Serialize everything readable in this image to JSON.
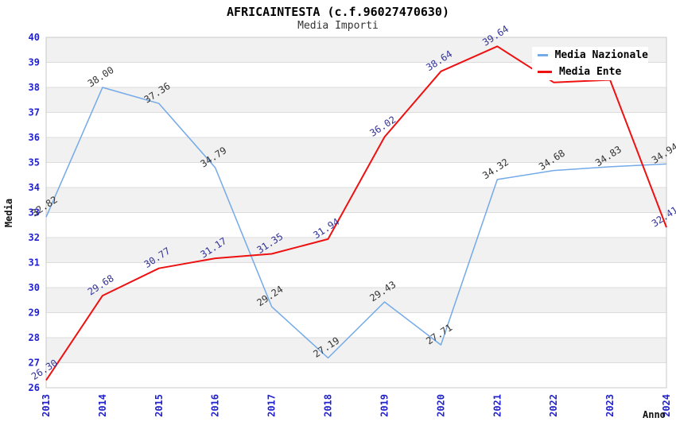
{
  "header": {
    "title": "AFRICAINTESTA (c.f.96027470630)",
    "subtitle": "Media Importi"
  },
  "legend": {
    "items": [
      {
        "label": "Media Nazionale",
        "color": "#74aae8"
      },
      {
        "label": "Media Ente",
        "color": "#ee1111"
      }
    ]
  },
  "chart_data": {
    "type": "line",
    "title": "AFRICAINTESTA (c.f.96027470630)",
    "subtitle": "Media Importi",
    "xlabel": "Anno",
    "ylabel": "Media",
    "x": [
      "2013",
      "2014",
      "2015",
      "2016",
      "2017",
      "2018",
      "2019",
      "2020",
      "2021",
      "2022",
      "2023",
      "2024"
    ],
    "ylim": [
      26,
      40
    ],
    "ytick_step": 1,
    "grid": true,
    "legend_position": "top-right",
    "series": [
      {
        "name": "Media Nazionale",
        "color": "#74aae8",
        "width": 1.5,
        "label_color": "#333333",
        "values": [
          32.82,
          38.0,
          37.36,
          34.79,
          29.24,
          27.19,
          29.43,
          27.71,
          34.32,
          34.68,
          34.83,
          34.94
        ],
        "point_labels": [
          "32.82",
          "38.00",
          "37.36",
          "34.79",
          "29.24",
          "27.19",
          "29.43",
          "27.71",
          "34.32",
          "34.68",
          "34.83",
          "34.94"
        ]
      },
      {
        "name": "Media Ente",
        "color": "#ee1111",
        "width": 2,
        "label_color": "#333399",
        "values": [
          26.3,
          29.68,
          30.77,
          31.17,
          31.35,
          31.94,
          36.02,
          38.64,
          39.64,
          38.2,
          38.3,
          32.41
        ],
        "point_labels": [
          "26.30",
          "29.68",
          "30.77",
          "31.17",
          "31.35",
          "31.94",
          "36.02",
          "38.64",
          "39.64",
          "",
          "",
          "32.41"
        ]
      }
    ],
    "style": {
      "band_color": "#f1f1f1",
      "grid_color": "#dcdcdc",
      "border_color": "#c8c8c8",
      "tick_color": "#2222cc"
    }
  }
}
